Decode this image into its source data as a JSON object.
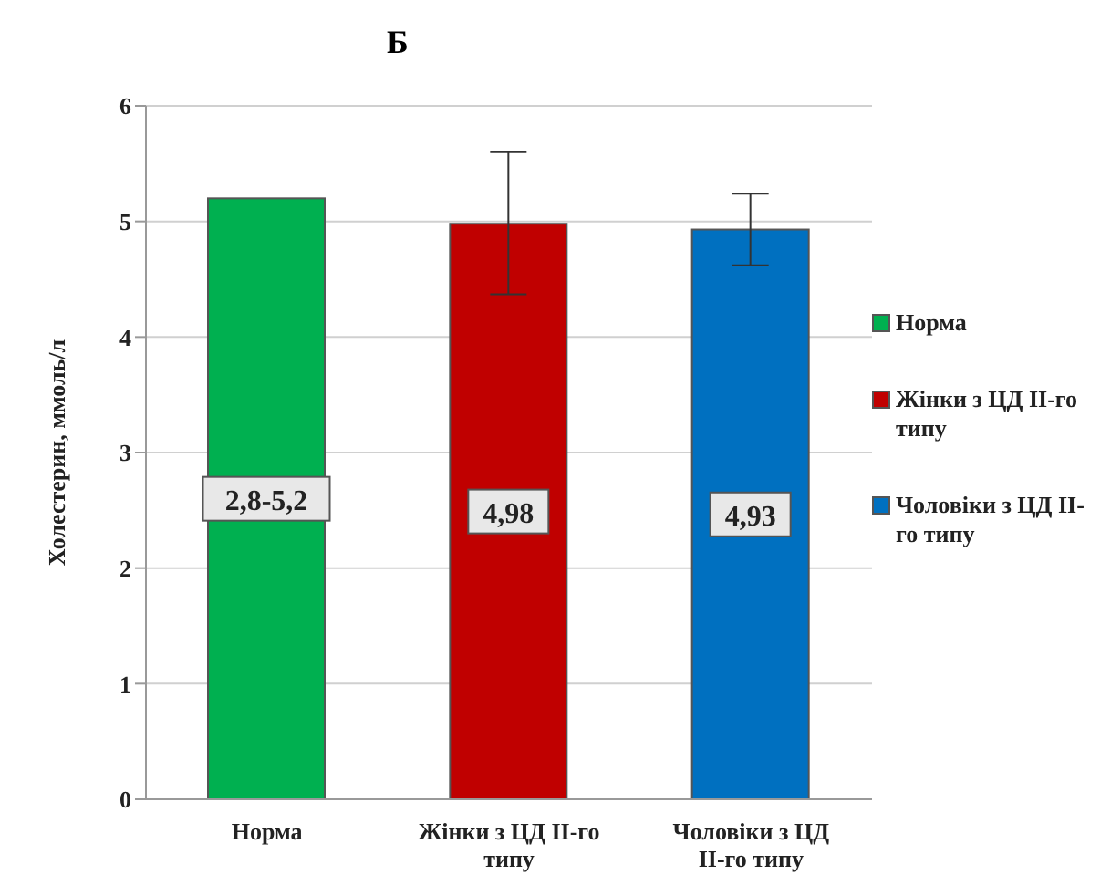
{
  "chart_data": {
    "type": "bar",
    "title": "Б",
    "ylabel": "Холестерин, ммоль/л",
    "categories": [
      "Норма",
      "Жінки з ЦД ІІ-го типу",
      "Чоловіки з ЦД ІІ-го типу"
    ],
    "series": [
      {
        "name": "Норма",
        "color": "#00b050",
        "values": [
          5.2,
          null,
          null
        ],
        "value_labels": [
          "2,8-5,2",
          null,
          null
        ]
      },
      {
        "name": "Жінки з ЦД ІІ-го типу",
        "color": "#c00000",
        "values": [
          null,
          4.98,
          null
        ],
        "value_labels": [
          null,
          "4,98",
          null
        ],
        "errors": [
          null,
          [
            4.37,
            5.6
          ],
          null
        ]
      },
      {
        "name": "Чоловіки з ЦД ІІ-го типу",
        "color": "#0070c0",
        "values": [
          null,
          null,
          4.93
        ],
        "value_labels": [
          null,
          null,
          "4,93"
        ],
        "errors": [
          null,
          null,
          [
            4.62,
            5.24
          ]
        ]
      }
    ],
    "ylim": [
      0,
      6
    ],
    "yticks": [
      0,
      1,
      2,
      3,
      4,
      5,
      6
    ],
    "grid": "y",
    "legend": "right"
  }
}
